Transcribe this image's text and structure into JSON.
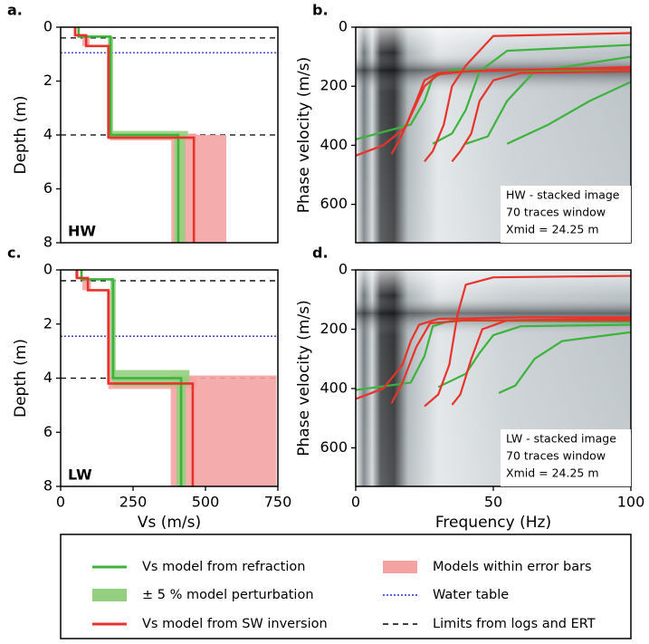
{
  "chart_data": [
    {
      "type": "step",
      "panel_label": "a.",
      "ylabel": "Depth (m)",
      "annotation": "HW",
      "xlim": [
        0,
        750
      ],
      "ylim": [
        8,
        0
      ],
      "yticks": [
        0,
        2,
        4,
        6,
        8
      ],
      "hlines": [
        {
          "value": 0.4,
          "color": "#000000",
          "dash": "dashed"
        },
        {
          "value": 0.95,
          "color": "#2233cc",
          "dash": "dotted"
        },
        {
          "value": 4.0,
          "color": "#000000",
          "dash": "dashed"
        }
      ],
      "series": [
        {
          "kind": "band",
          "color": "#f4a3a3",
          "rects": [
            [
              45,
              55,
              0,
              0.3
            ],
            [
              75,
              100,
              0.3,
              0.7
            ],
            [
              160,
              172,
              0.7,
              4.1
            ],
            [
              170,
              470,
              3.95,
              4.2
            ],
            [
              382,
              572,
              4.0,
              8
            ]
          ]
        },
        {
          "kind": "band",
          "color": "#93cf7e",
          "rects": [
            [
              59,
              65,
              0,
              0.35
            ],
            [
              163,
              181,
              0.35,
              4.0
            ],
            [
              172,
              440,
              3.85,
              4.15
            ],
            [
              392,
              430,
              4.0,
              8
            ]
          ]
        },
        {
          "kind": "line",
          "color": "#3cb33c",
          "x": [
            62,
            62,
            172,
            172,
            406,
            406
          ],
          "y": [
            0,
            0.35,
            0.35,
            4.0,
            4.0,
            8
          ]
        },
        {
          "kind": "line",
          "color": "#e8332a",
          "x": [
            50,
            50,
            88,
            88,
            165,
            165,
            460,
            460
          ],
          "y": [
            0,
            0.3,
            0.3,
            0.7,
            0.7,
            4.1,
            4.1,
            8
          ]
        }
      ]
    },
    {
      "type": "line",
      "panel_label": "b.",
      "ylabel": "Phase velocity (m/s)",
      "xlim": [
        0,
        100
      ],
      "ylim": [
        730,
        0
      ],
      "yticks": [
        0,
        200,
        400,
        600
      ],
      "annotation_lines": [
        "HW - stacked image",
        "70 traces window",
        "Xmid = 24.25 m"
      ],
      "series": [
        {
          "color": "#3cb33c",
          "x": [
            0,
            20,
            25,
            28,
            35,
            100
          ],
          "values": [
            380,
            330,
            250,
            170,
            145,
            150
          ]
        },
        {
          "color": "#3cb33c",
          "x": [
            28,
            35,
            40,
            45,
            55,
            100
          ],
          "values": [
            395,
            360,
            280,
            150,
            80,
            60
          ]
        },
        {
          "color": "#3cb33c",
          "x": [
            40,
            48,
            55,
            65,
            100
          ],
          "values": [
            395,
            370,
            250,
            150,
            100
          ]
        },
        {
          "color": "#3cb33c",
          "x": [
            55,
            70,
            85,
            100
          ],
          "values": [
            395,
            330,
            250,
            185
          ]
        },
        {
          "color": "#e8332a",
          "x": [
            0,
            10,
            18,
            22,
            25,
            30,
            50,
            100
          ],
          "values": [
            435,
            400,
            340,
            250,
            180,
            155,
            145,
            140
          ]
        },
        {
          "color": "#e8332a",
          "x": [
            13,
            16,
            20,
            25,
            30,
            40,
            100
          ],
          "values": [
            430,
            380,
            300,
            200,
            160,
            150,
            135
          ]
        },
        {
          "color": "#e8332a",
          "x": [
            25,
            28,
            32,
            35,
            40,
            50,
            100
          ],
          "values": [
            455,
            420,
            330,
            200,
            130,
            30,
            20
          ]
        },
        {
          "color": "#e8332a",
          "x": [
            35,
            38,
            42,
            45,
            50,
            60,
            100
          ],
          "values": [
            455,
            420,
            360,
            250,
            180,
            155,
            150
          ]
        }
      ]
    },
    {
      "type": "step",
      "panel_label": "c.",
      "ylabel": "Depth (m)",
      "xlabel": "Vs (m/s)",
      "annotation": "LW",
      "xlim": [
        0,
        750
      ],
      "ylim": [
        8,
        0
      ],
      "xticks": [
        0,
        250,
        500,
        750
      ],
      "yticks": [
        0,
        2,
        4,
        6,
        8
      ],
      "hlines": [
        {
          "value": 0.4,
          "color": "#000000",
          "dash": "dashed"
        },
        {
          "value": 2.45,
          "color": "#2233cc",
          "dash": "dotted"
        },
        {
          "value": 4.0,
          "color": "#000000",
          "dash": "dashed"
        }
      ],
      "series": [
        {
          "kind": "band",
          "color": "#f4a3a3",
          "rects": [
            [
              50,
              62,
              0,
              0.3
            ],
            [
              75,
              105,
              0.3,
              0.75
            ],
            [
              160,
              172,
              0.75,
              4.2
            ],
            [
              165,
              470,
              3.95,
              4.4
            ],
            [
              380,
              745,
              3.9,
              8
            ]
          ]
        },
        {
          "kind": "band",
          "color": "#93cf7e",
          "rects": [
            [
              68,
              76,
              0,
              0.35
            ],
            [
              172,
              190,
              0.35,
              4.0
            ],
            [
              180,
              445,
              3.7,
              4.3
            ],
            [
              400,
              432,
              4.0,
              8
            ]
          ]
        },
        {
          "kind": "line",
          "color": "#3cb33c",
          "x": [
            72,
            72,
            181,
            181,
            416,
            416
          ],
          "y": [
            0,
            0.35,
            0.35,
            4.0,
            4.0,
            8
          ]
        },
        {
          "kind": "line",
          "color": "#e8332a",
          "x": [
            56,
            56,
            94,
            94,
            165,
            165,
            456,
            456
          ],
          "y": [
            0,
            0.3,
            0.3,
            0.75,
            0.75,
            4.2,
            4.2,
            8
          ]
        }
      ]
    },
    {
      "type": "line",
      "panel_label": "d.",
      "ylabel": "Phase velocity (m/s)",
      "xlabel": "Frequency (Hz)",
      "xlim": [
        0,
        100
      ],
      "ylim": [
        730,
        0
      ],
      "xticks": [
        0,
        50,
        100
      ],
      "yticks": [
        0,
        200,
        400,
        600
      ],
      "annotation_lines": [
        "LW - stacked image",
        "70 traces window",
        "Xmid = 24.25 m"
      ],
      "series": [
        {
          "color": "#3cb33c",
          "x": [
            0,
            20,
            25,
            28,
            35,
            100
          ],
          "values": [
            405,
            380,
            290,
            190,
            170,
            175
          ]
        },
        {
          "color": "#3cb33c",
          "x": [
            30,
            40,
            45,
            50,
            60,
            100
          ],
          "values": [
            395,
            350,
            280,
            220,
            190,
            185
          ]
        },
        {
          "color": "#3cb33c",
          "x": [
            52,
            58,
            65,
            75,
            100
          ],
          "values": [
            415,
            390,
            300,
            240,
            210
          ]
        },
        {
          "color": "#e8332a",
          "x": [
            0,
            10,
            17,
            20,
            23,
            30,
            60,
            100
          ],
          "values": [
            435,
            400,
            320,
            240,
            185,
            165,
            160,
            160
          ]
        },
        {
          "color": "#e8332a",
          "x": [
            13,
            17,
            22,
            27,
            40,
            100
          ],
          "values": [
            450,
            380,
            260,
            180,
            170,
            170
          ]
        },
        {
          "color": "#e8332a",
          "x": [
            25,
            30,
            34,
            37,
            40,
            50,
            100
          ],
          "values": [
            460,
            420,
            320,
            150,
            50,
            25,
            20
          ]
        },
        {
          "color": "#e8332a",
          "x": [
            35,
            38,
            42,
            46,
            55,
            100
          ],
          "values": [
            455,
            420,
            300,
            200,
            170,
            165
          ]
        }
      ]
    }
  ],
  "legend": {
    "entries": [
      {
        "label": "Vs model from refraction",
        "kind": "line",
        "color": "#3cb33c"
      },
      {
        "label": "± 5 % model perturbation",
        "kind": "band",
        "color": "#93cf7e"
      },
      {
        "label": "Vs model from SW inversion",
        "kind": "line",
        "color": "#e8332a"
      },
      {
        "label": "Models within error bars",
        "kind": "band",
        "color": "#f4a3a3"
      },
      {
        "label": "Water table",
        "kind": "dotted",
        "color": "#2233cc"
      },
      {
        "label": "Limits from logs and ERT",
        "kind": "dashed",
        "color": "#000000"
      }
    ]
  }
}
